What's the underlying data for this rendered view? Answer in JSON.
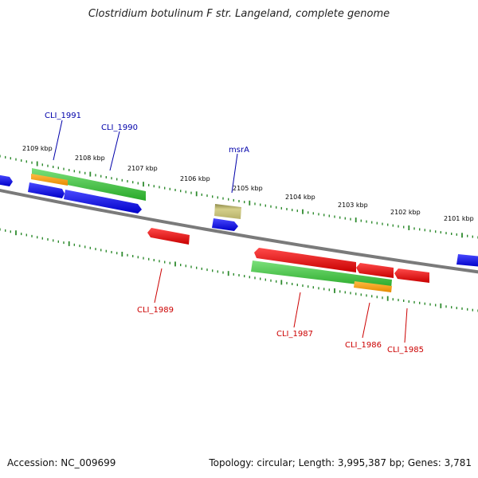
{
  "title": "Clostridium botulinum F str. Langeland, complete genome",
  "footer": {
    "accession": "Accession: NC_009699",
    "summary": "Topology: circular; Length: 3,995,387 bp; Genes: 3,781"
  },
  "colors": {
    "backbone": "#888888",
    "ticks": "#2e8b2e",
    "plus_strand_label": "#0000aa",
    "minus_strand_label": "#cc0000",
    "blue_gene": "#0000ee",
    "red_gene": "#ee0000",
    "green_feature": "#3cc83c",
    "orange_feature": "#ff9900",
    "khaki_feature": "#bdb76b"
  },
  "scale_labels": [
    "2109 kbp",
    "2108 kbp",
    "2107 kbp",
    "2106 kbp",
    "2105 kbp",
    "2104 kbp",
    "2103 kbp",
    "2102 kbp",
    "2101 kbp"
  ],
  "gene_labels": {
    "plus": [
      "CLI_1991",
      "CLI_1990",
      "msrA"
    ],
    "minus": [
      "CLI_1989",
      "CLI_1987",
      "CLI_1986",
      "CLI_1985"
    ]
  }
}
